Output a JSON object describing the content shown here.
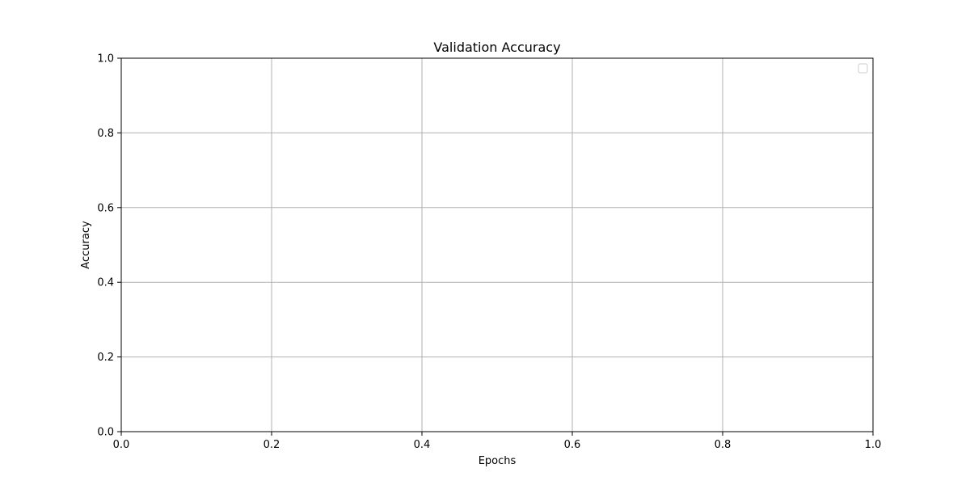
{
  "chart_data": {
    "type": "line",
    "title": "Validation Accuracy",
    "xlabel": "Epochs",
    "ylabel": "Accuracy",
    "xlim": [
      0.0,
      1.0
    ],
    "ylim": [
      0.0,
      1.0
    ],
    "xticks": [
      0.0,
      0.2,
      0.4,
      0.6,
      0.8,
      1.0
    ],
    "yticks": [
      0.0,
      0.2,
      0.4,
      0.6,
      0.8,
      1.0
    ],
    "xtick_labels": [
      "0.0",
      "0.2",
      "0.4",
      "0.6",
      "0.8",
      "1.0"
    ],
    "ytick_labels": [
      "0.0",
      "0.2",
      "0.4",
      "0.6",
      "0.8",
      "1.0"
    ],
    "series": [],
    "grid": true,
    "legend": "top-right",
    "colors": {
      "grid": "#b0b0b0",
      "axes": "#000000",
      "background": "#ffffff",
      "legend_border": "#cccccc"
    }
  }
}
